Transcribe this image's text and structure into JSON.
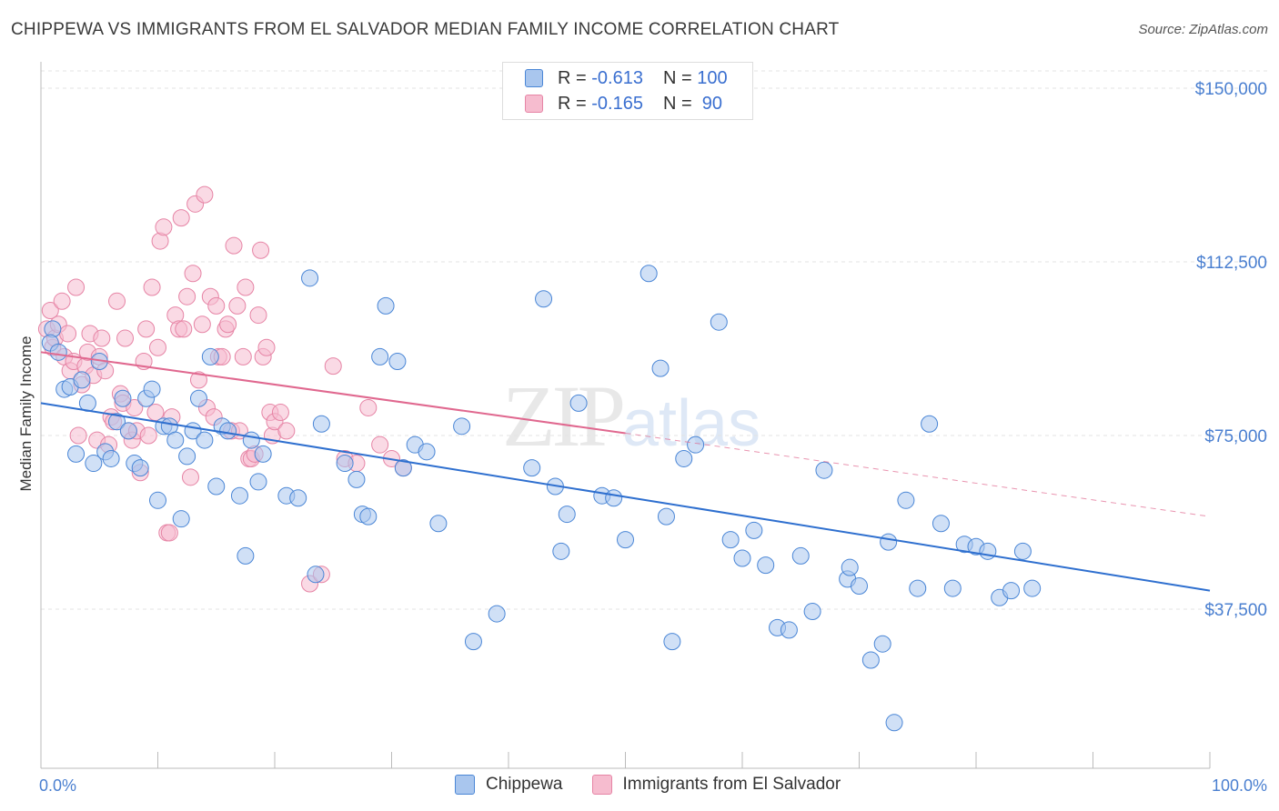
{
  "header": {
    "title": "CHIPPEWA VS IMMIGRANTS FROM EL SALVADOR MEDIAN FAMILY INCOME CORRELATION CHART",
    "source": "Source: ZipAtlas.com"
  },
  "legend": {
    "rows": [
      {
        "r_label": "R =",
        "r_value": "-0.613",
        "n_label": "N =",
        "n_value": "100"
      },
      {
        "r_label": "R =",
        "r_value": "-0.165",
        "n_label": "N =",
        "n_value": " 90"
      }
    ],
    "bottom": [
      "Chippewa",
      "Immigrants from El Salvador"
    ]
  },
  "watermark": {
    "zip": "ZIP",
    "atlas": "atlas"
  },
  "colors": {
    "blue_fill": "#a9c6ee",
    "blue_stroke": "#4a86d6",
    "blue_line": "#2e6fcf",
    "pink_fill": "#f6bccf",
    "pink_stroke": "#e684a5",
    "pink_line": "#e0688f",
    "grid": "#e3e3e3",
    "tick_text": "#4a7fd0"
  },
  "chart_data": {
    "type": "scatter",
    "title": "CHIPPEWA VS IMMIGRANTS FROM EL SALVADOR MEDIAN FAMILY INCOME CORRELATION CHART",
    "xlabel": "",
    "ylabel": "Median Family Income",
    "xlim": [
      0,
      100
    ],
    "ylim": [
      0,
      152000
    ],
    "x_tick_labels": [
      "0.0%",
      "100.0%"
    ],
    "y_ticks": [
      37500,
      75000,
      112500,
      150000
    ],
    "y_tick_labels": [
      "$37,500",
      "$75,000",
      "$112,500",
      "$150,000"
    ],
    "grid": true,
    "legend_position": "top-center",
    "series": [
      {
        "name": "Chippewa",
        "color": "#4a86d6",
        "trend": {
          "x": [
            0,
            100
          ],
          "y": [
            82000,
            41500
          ]
        },
        "points": [
          [
            1,
            98000
          ],
          [
            0.8,
            95000
          ],
          [
            1.5,
            93000
          ],
          [
            2,
            85000
          ],
          [
            2.5,
            85500
          ],
          [
            3,
            71000
          ],
          [
            3.5,
            87000
          ],
          [
            4,
            82000
          ],
          [
            4.5,
            69000
          ],
          [
            5,
            91000
          ],
          [
            5.5,
            71500
          ],
          [
            6,
            70000
          ],
          [
            6.5,
            78000
          ],
          [
            7,
            83000
          ],
          [
            7.5,
            76000
          ],
          [
            8,
            69000
          ],
          [
            8.5,
            68000
          ],
          [
            9,
            83000
          ],
          [
            9.5,
            85000
          ],
          [
            10,
            61000
          ],
          [
            10.5,
            77000
          ],
          [
            11,
            77000
          ],
          [
            11.5,
            74000
          ],
          [
            12,
            57000
          ],
          [
            12.5,
            70500
          ],
          [
            13,
            76000
          ],
          [
            13.5,
            83000
          ],
          [
            14,
            74000
          ],
          [
            14.5,
            92000
          ],
          [
            15,
            64000
          ],
          [
            15.5,
            77000
          ],
          [
            16,
            76000
          ],
          [
            17,
            62000
          ],
          [
            17.5,
            49000
          ],
          [
            18,
            74000
          ],
          [
            18.6,
            65000
          ],
          [
            19,
            71000
          ],
          [
            21,
            62000
          ],
          [
            22,
            61500
          ],
          [
            23,
            109000
          ],
          [
            23.5,
            45000
          ],
          [
            24,
            77500
          ],
          [
            26,
            69000
          ],
          [
            27,
            65500
          ],
          [
            27.5,
            58000
          ],
          [
            28,
            57500
          ],
          [
            29,
            92000
          ],
          [
            29.5,
            103000
          ],
          [
            30.5,
            91000
          ],
          [
            31,
            68000
          ],
          [
            32,
            73000
          ],
          [
            33,
            71500
          ],
          [
            34,
            56000
          ],
          [
            36,
            77000
          ],
          [
            37,
            30500
          ],
          [
            39,
            36500
          ],
          [
            42,
            68000
          ],
          [
            43,
            104500
          ],
          [
            44,
            64000
          ],
          [
            44.5,
            50000
          ],
          [
            45,
            58000
          ],
          [
            46,
            82000
          ],
          [
            48,
            62000
          ],
          [
            49,
            61500
          ],
          [
            50,
            52500
          ],
          [
            52,
            110000
          ],
          [
            53,
            89500
          ],
          [
            53.5,
            57500
          ],
          [
            54,
            30500
          ],
          [
            55,
            70000
          ],
          [
            56,
            73000
          ],
          [
            58,
            99500
          ],
          [
            59,
            52500
          ],
          [
            60,
            48500
          ],
          [
            61,
            54500
          ],
          [
            62,
            47000
          ],
          [
            63,
            33500
          ],
          [
            64,
            33000
          ],
          [
            65,
            49000
          ],
          [
            66,
            37000
          ],
          [
            67,
            67500
          ],
          [
            69,
            44000
          ],
          [
            69.2,
            46500
          ],
          [
            70,
            42500
          ],
          [
            71,
            26500
          ],
          [
            72,
            30000
          ],
          [
            73,
            13000
          ],
          [
            74,
            61000
          ],
          [
            75,
            42000
          ],
          [
            76,
            77500
          ],
          [
            77,
            56000
          ],
          [
            78,
            42000
          ],
          [
            79,
            51500
          ],
          [
            80,
            51000
          ],
          [
            81,
            50000
          ],
          [
            82,
            40000
          ],
          [
            83,
            41500
          ],
          [
            84,
            50000
          ],
          [
            84.8,
            42000
          ],
          [
            72.5,
            52000
          ]
        ]
      },
      {
        "name": "Immigrants from El Salvador",
        "color": "#e684a5",
        "trend": {
          "x": [
            0,
            50
          ],
          "y": [
            93000,
            75500
          ]
        },
        "trend_dashed": {
          "x": [
            50,
            100
          ],
          "y": [
            75500,
            57500
          ]
        },
        "points": [
          [
            0.5,
            98000
          ],
          [
            0.8,
            102000
          ],
          [
            1,
            94000
          ],
          [
            1.2,
            96000
          ],
          [
            1.5,
            99000
          ],
          [
            1.8,
            104000
          ],
          [
            2,
            92000
          ],
          [
            2.3,
            97000
          ],
          [
            2.5,
            89000
          ],
          [
            2.8,
            91000
          ],
          [
            3,
            107000
          ],
          [
            3.2,
            75000
          ],
          [
            3.5,
            86000
          ],
          [
            3.8,
            90000
          ],
          [
            4,
            93000
          ],
          [
            4.2,
            97000
          ],
          [
            4.5,
            88000
          ],
          [
            4.8,
            74000
          ],
          [
            5,
            92000
          ],
          [
            5.2,
            96000
          ],
          [
            5.5,
            89000
          ],
          [
            5.8,
            73000
          ],
          [
            6,
            79000
          ],
          [
            6.2,
            78000
          ],
          [
            6.5,
            104000
          ],
          [
            6.8,
            84000
          ],
          [
            7,
            82000
          ],
          [
            7.2,
            96000
          ],
          [
            7.5,
            76000
          ],
          [
            7.8,
            74000
          ],
          [
            8,
            81000
          ],
          [
            8.2,
            76000
          ],
          [
            8.5,
            67000
          ],
          [
            8.8,
            91000
          ],
          [
            9,
            98000
          ],
          [
            9.2,
            75000
          ],
          [
            9.5,
            107000
          ],
          [
            9.8,
            80000
          ],
          [
            10,
            94000
          ],
          [
            10.2,
            117000
          ],
          [
            10.5,
            120000
          ],
          [
            10.8,
            54000
          ],
          [
            11,
            54000
          ],
          [
            11.2,
            79000
          ],
          [
            11.5,
            101000
          ],
          [
            11.8,
            98000
          ],
          [
            12,
            122000
          ],
          [
            12.2,
            98000
          ],
          [
            12.5,
            105000
          ],
          [
            12.8,
            66000
          ],
          [
            13,
            110000
          ],
          [
            13.2,
            125000
          ],
          [
            13.5,
            87000
          ],
          [
            13.8,
            99000
          ],
          [
            14,
            127000
          ],
          [
            14.2,
            81000
          ],
          [
            14.5,
            105000
          ],
          [
            14.8,
            79000
          ],
          [
            15,
            103000
          ],
          [
            15.2,
            92000
          ],
          [
            15.5,
            92000
          ],
          [
            15.8,
            98000
          ],
          [
            16,
            99000
          ],
          [
            16.3,
            76000
          ],
          [
            16.5,
            116000
          ],
          [
            16.8,
            103000
          ],
          [
            17,
            76000
          ],
          [
            17.3,
            92000
          ],
          [
            17.5,
            107000
          ],
          [
            17.8,
            70000
          ],
          [
            18,
            70000
          ],
          [
            18.3,
            71000
          ],
          [
            18.6,
            101000
          ],
          [
            18.8,
            115000
          ],
          [
            19,
            92000
          ],
          [
            19.3,
            94000
          ],
          [
            19.6,
            80000
          ],
          [
            19.8,
            75000
          ],
          [
            20,
            78000
          ],
          [
            20.5,
            80000
          ],
          [
            21,
            76000
          ],
          [
            23,
            43000
          ],
          [
            24,
            45000
          ],
          [
            25,
            90000
          ],
          [
            26,
            70000
          ],
          [
            27,
            69000
          ],
          [
            28,
            81000
          ],
          [
            29,
            73000
          ],
          [
            30,
            70000
          ],
          [
            31,
            68000
          ]
        ]
      }
    ]
  }
}
